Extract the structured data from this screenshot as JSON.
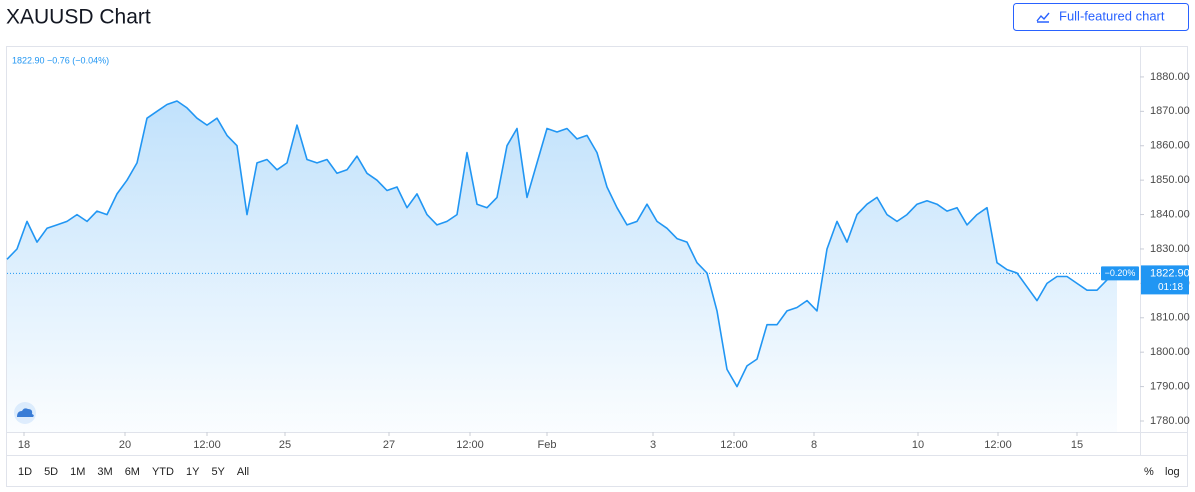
{
  "chart_data": {
    "type": "area",
    "title": "XAUUSD Chart",
    "color": "#2196f3",
    "values": [
      1827,
      1830,
      1838,
      1832,
      1836,
      1837,
      1838,
      1840,
      1838,
      1841,
      1840,
      1846,
      1850,
      1855,
      1868,
      1870,
      1872,
      1873,
      1871,
      1868,
      1866,
      1868,
      1863,
      1860,
      1840,
      1855,
      1856,
      1853,
      1855,
      1866,
      1856,
      1855,
      1856,
      1852,
      1853,
      1857,
      1852,
      1850,
      1847,
      1848,
      1842,
      1846,
      1840,
      1837,
      1838,
      1840,
      1858,
      1843,
      1842,
      1845,
      1860,
      1865,
      1845,
      1855,
      1865,
      1864,
      1865,
      1862,
      1863,
      1858,
      1848,
      1842,
      1837,
      1838,
      1843,
      1838,
      1836,
      1833,
      1832,
      1826,
      1823,
      1812,
      1795,
      1790,
      1796,
      1798,
      1808,
      1808,
      1812,
      1813,
      1815,
      1812,
      1830,
      1838,
      1832,
      1840,
      1843,
      1845,
      1840,
      1838,
      1840,
      1843,
      1844,
      1843,
      1841,
      1842,
      1837,
      1840,
      1842,
      1826,
      1824,
      1823,
      1819,
      1815,
      1820,
      1822,
      1822,
      1820,
      1818,
      1818,
      1821,
      1822.9
    ],
    "xlim": [
      0,
      112.4
    ],
    "xticks": [
      {
        "value": 1.7,
        "label": "18"
      },
      {
        "value": 11.8,
        "label": "20"
      },
      {
        "value": 20,
        "label": "12:00"
      },
      {
        "value": 27.8,
        "label": "25"
      },
      {
        "value": 38.2,
        "label": "27"
      },
      {
        "value": 46.3,
        "label": "12:00"
      },
      {
        "value": 54,
        "label": "Feb"
      },
      {
        "value": 64.6,
        "label": "3"
      },
      {
        "value": 72.7,
        "label": "12:00"
      },
      {
        "value": 80.7,
        "label": "8"
      },
      {
        "value": 91.1,
        "label": "10"
      },
      {
        "value": 99.1,
        "label": "12:00"
      },
      {
        "value": 107,
        "label": "15"
      }
    ],
    "ylim": [
      1776.8,
      1888.7
    ],
    "yticks": [
      {
        "value": 1780,
        "label": "1780.00"
      },
      {
        "value": 1790,
        "label": "1790.00"
      },
      {
        "value": 1800,
        "label": "1800.00"
      },
      {
        "value": 1810,
        "label": "1810.00"
      },
      {
        "value": 1820,
        "label": "1820.00"
      },
      {
        "value": 1830,
        "label": "1830.00"
      },
      {
        "value": 1840,
        "label": "1840.00"
      },
      {
        "value": 1850,
        "label": "1850.00"
      },
      {
        "value": 1860,
        "label": "1860.00"
      },
      {
        "value": 1870,
        "label": "1870.00"
      },
      {
        "value": 1880,
        "label": "1880.00"
      }
    ],
    "grid": false,
    "legend": "1822.90 −0.76 (−0.04%)",
    "last_badge": {
      "change": "−0.20%",
      "price": "1822.90",
      "countdown": "01:18"
    }
  },
  "button": "Full-featured chart",
  "ranges": [
    "1D",
    "5D",
    "1M",
    "3M",
    "6M",
    "YTD",
    "1Y",
    "5Y",
    "All"
  ],
  "scale_options": [
    "%",
    "log"
  ]
}
